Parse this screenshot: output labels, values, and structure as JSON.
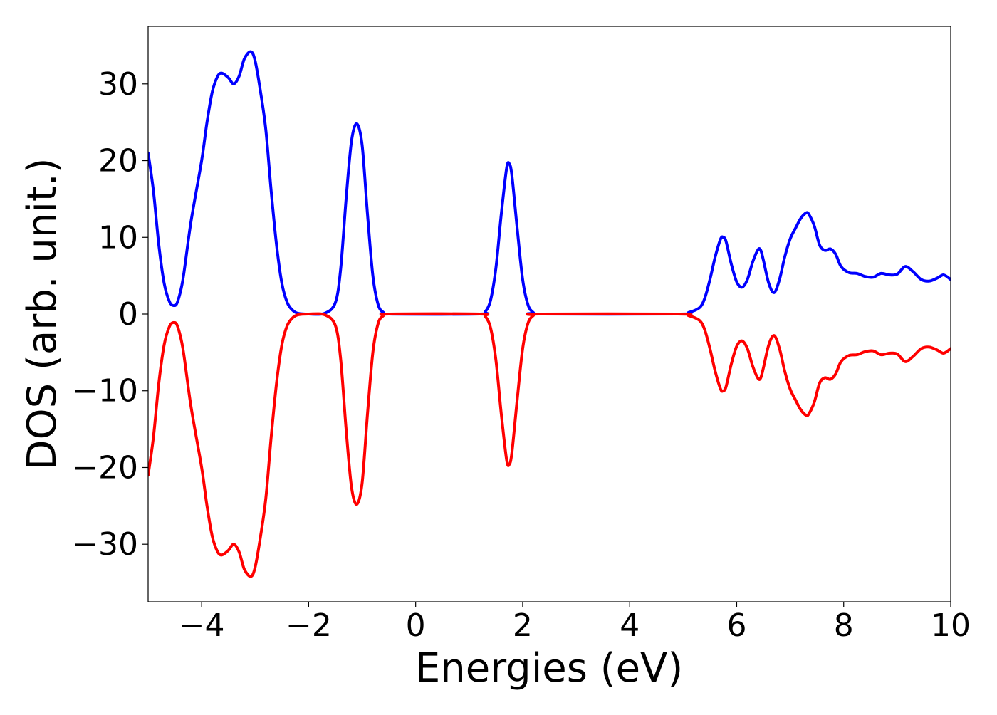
{
  "chart_data": {
    "type": "line",
    "title": "",
    "xlabel": "Energies (eV)",
    "ylabel": "DOS (arb. unit.)",
    "xlim": [
      -5,
      10
    ],
    "ylim": [
      -37.5,
      37.5
    ],
    "xticks": [
      -4,
      -2,
      0,
      2,
      4,
      6,
      8,
      10
    ],
    "xtick_labels": [
      "−4",
      "−2",
      "0",
      "2",
      "4",
      "6",
      "8",
      "10"
    ],
    "yticks": [
      -30,
      -20,
      -10,
      0,
      10,
      20,
      30
    ],
    "ytick_labels": [
      "−30",
      "−20",
      "−10",
      "0",
      "10",
      "20",
      "30"
    ],
    "grid": false,
    "legend": false,
    "series": [
      {
        "color": "#0000ff",
        "points": [
          [
            -5.0,
            21.0
          ],
          [
            -4.9,
            16.0
          ],
          [
            -4.8,
            9.0
          ],
          [
            -4.7,
            4.0
          ],
          [
            -4.6,
            1.6
          ],
          [
            -4.52,
            1.1
          ],
          [
            -4.45,
            1.6
          ],
          [
            -4.35,
            4.5
          ],
          [
            -4.2,
            12.0
          ],
          [
            -4.0,
            20.0
          ],
          [
            -3.9,
            25.0
          ],
          [
            -3.8,
            29.0
          ],
          [
            -3.7,
            31.0
          ],
          [
            -3.62,
            31.4
          ],
          [
            -3.5,
            30.8
          ],
          [
            -3.4,
            30.0
          ],
          [
            -3.3,
            31.0
          ],
          [
            -3.2,
            33.3
          ],
          [
            -3.08,
            34.2
          ],
          [
            -3.0,
            33.0
          ],
          [
            -2.9,
            29.0
          ],
          [
            -2.8,
            24.0
          ],
          [
            -2.7,
            16.0
          ],
          [
            -2.6,
            9.0
          ],
          [
            -2.5,
            4.0
          ],
          [
            -2.4,
            1.5
          ],
          [
            -2.3,
            0.5
          ],
          [
            -2.2,
            0.1
          ],
          [
            -2.0,
            0.0
          ],
          [
            -1.7,
            0.1
          ],
          [
            -1.5,
            1.5
          ],
          [
            -1.4,
            6.0
          ],
          [
            -1.3,
            15.0
          ],
          [
            -1.2,
            22.5
          ],
          [
            -1.1,
            24.8
          ],
          [
            -1.0,
            22.0
          ],
          [
            -0.9,
            13.0
          ],
          [
            -0.8,
            5.0
          ],
          [
            -0.7,
            1.2
          ],
          [
            -0.6,
            0.2
          ],
          [
            -0.5,
            0.0
          ],
          [
            1.2,
            0.0
          ],
          [
            1.3,
            0.3
          ],
          [
            1.4,
            1.8
          ],
          [
            1.5,
            6.0
          ],
          [
            1.6,
            13.0
          ],
          [
            1.7,
            19.0
          ],
          [
            1.75,
            19.6
          ],
          [
            1.8,
            18.0
          ],
          [
            1.9,
            11.0
          ],
          [
            2.0,
            4.5
          ],
          [
            2.1,
            1.2
          ],
          [
            2.2,
            0.2
          ],
          [
            2.3,
            0.0
          ],
          [
            4.9,
            0.0
          ],
          [
            5.1,
            0.2
          ],
          [
            5.3,
            0.8
          ],
          [
            5.4,
            2.0
          ],
          [
            5.5,
            4.5
          ],
          [
            5.6,
            7.5
          ],
          [
            5.7,
            9.8
          ],
          [
            5.75,
            10.0
          ],
          [
            5.8,
            9.5
          ],
          [
            5.9,
            6.5
          ],
          [
            6.0,
            4.2
          ],
          [
            6.1,
            3.5
          ],
          [
            6.2,
            4.5
          ],
          [
            6.3,
            6.8
          ],
          [
            6.4,
            8.4
          ],
          [
            6.45,
            8.3
          ],
          [
            6.5,
            7.0
          ],
          [
            6.6,
            4.0
          ],
          [
            6.7,
            2.8
          ],
          [
            6.8,
            4.5
          ],
          [
            6.9,
            7.5
          ],
          [
            7.0,
            9.8
          ],
          [
            7.1,
            11.2
          ],
          [
            7.2,
            12.5
          ],
          [
            7.3,
            13.2
          ],
          [
            7.35,
            13.0
          ],
          [
            7.45,
            11.5
          ],
          [
            7.55,
            9.0
          ],
          [
            7.65,
            8.3
          ],
          [
            7.75,
            8.5
          ],
          [
            7.85,
            7.8
          ],
          [
            7.95,
            6.2
          ],
          [
            8.1,
            5.4
          ],
          [
            8.25,
            5.3
          ],
          [
            8.4,
            4.9
          ],
          [
            8.55,
            4.8
          ],
          [
            8.7,
            5.3
          ],
          [
            8.85,
            5.1
          ],
          [
            9.0,
            5.2
          ],
          [
            9.15,
            6.2
          ],
          [
            9.3,
            5.5
          ],
          [
            9.45,
            4.5
          ],
          [
            9.6,
            4.3
          ],
          [
            9.75,
            4.7
          ],
          [
            9.87,
            5.1
          ],
          [
            10.0,
            4.5
          ]
        ]
      },
      {
        "color": "#ff0000",
        "points": [
          [
            -5.0,
            -21.0
          ],
          [
            -4.9,
            -16.0
          ],
          [
            -4.8,
            -9.0
          ],
          [
            -4.7,
            -4.0
          ],
          [
            -4.6,
            -1.6
          ],
          [
            -4.52,
            -1.1
          ],
          [
            -4.45,
            -1.6
          ],
          [
            -4.35,
            -4.5
          ],
          [
            -4.2,
            -12.0
          ],
          [
            -4.0,
            -20.0
          ],
          [
            -3.9,
            -25.0
          ],
          [
            -3.8,
            -29.0
          ],
          [
            -3.7,
            -31.0
          ],
          [
            -3.62,
            -31.4
          ],
          [
            -3.5,
            -30.8
          ],
          [
            -3.4,
            -30.0
          ],
          [
            -3.3,
            -31.0
          ],
          [
            -3.2,
            -33.3
          ],
          [
            -3.08,
            -34.2
          ],
          [
            -3.0,
            -33.0
          ],
          [
            -2.9,
            -29.0
          ],
          [
            -2.8,
            -24.0
          ],
          [
            -2.7,
            -16.0
          ],
          [
            -2.6,
            -9.0
          ],
          [
            -2.5,
            -4.0
          ],
          [
            -2.4,
            -1.5
          ],
          [
            -2.3,
            -0.5
          ],
          [
            -2.2,
            -0.1
          ],
          [
            -2.0,
            0.0
          ],
          [
            -1.7,
            -0.1
          ],
          [
            -1.5,
            -1.5
          ],
          [
            -1.4,
            -6.0
          ],
          [
            -1.3,
            -15.0
          ],
          [
            -1.2,
            -22.5
          ],
          [
            -1.1,
            -24.8
          ],
          [
            -1.0,
            -22.0
          ],
          [
            -0.9,
            -13.0
          ],
          [
            -0.8,
            -5.0
          ],
          [
            -0.7,
            -1.2
          ],
          [
            -0.6,
            -0.2
          ],
          [
            -0.5,
            0.0
          ],
          [
            1.2,
            0.0
          ],
          [
            1.3,
            -0.3
          ],
          [
            1.4,
            -1.8
          ],
          [
            1.5,
            -6.0
          ],
          [
            1.6,
            -13.0
          ],
          [
            1.7,
            -19.0
          ],
          [
            1.75,
            -19.6
          ],
          [
            1.8,
            -18.0
          ],
          [
            1.9,
            -11.0
          ],
          [
            2.0,
            -4.5
          ],
          [
            2.1,
            -1.2
          ],
          [
            2.2,
            -0.2
          ],
          [
            2.3,
            0.0
          ],
          [
            4.9,
            0.0
          ],
          [
            5.1,
            -0.2
          ],
          [
            5.3,
            -0.8
          ],
          [
            5.4,
            -2.0
          ],
          [
            5.5,
            -4.5
          ],
          [
            5.6,
            -7.5
          ],
          [
            5.7,
            -9.8
          ],
          [
            5.75,
            -10.0
          ],
          [
            5.8,
            -9.5
          ],
          [
            5.9,
            -6.5
          ],
          [
            6.0,
            -4.2
          ],
          [
            6.1,
            -3.5
          ],
          [
            6.2,
            -4.5
          ],
          [
            6.3,
            -6.8
          ],
          [
            6.4,
            -8.4
          ],
          [
            6.45,
            -8.3
          ],
          [
            6.5,
            -7.0
          ],
          [
            6.6,
            -4.0
          ],
          [
            6.7,
            -2.8
          ],
          [
            6.8,
            -4.5
          ],
          [
            6.9,
            -7.5
          ],
          [
            7.0,
            -9.8
          ],
          [
            7.1,
            -11.2
          ],
          [
            7.2,
            -12.5
          ],
          [
            7.3,
            -13.2
          ],
          [
            7.35,
            -13.0
          ],
          [
            7.45,
            -11.5
          ],
          [
            7.55,
            -9.0
          ],
          [
            7.65,
            -8.3
          ],
          [
            7.75,
            -8.5
          ],
          [
            7.85,
            -7.8
          ],
          [
            7.95,
            -6.2
          ],
          [
            8.1,
            -5.4
          ],
          [
            8.25,
            -5.3
          ],
          [
            8.4,
            -4.9
          ],
          [
            8.55,
            -4.8
          ],
          [
            8.7,
            -5.3
          ],
          [
            8.85,
            -5.1
          ],
          [
            9.0,
            -5.2
          ],
          [
            9.15,
            -6.2
          ],
          [
            9.3,
            -5.5
          ],
          [
            9.45,
            -4.5
          ],
          [
            9.6,
            -4.3
          ],
          [
            9.75,
            -4.7
          ],
          [
            9.87,
            -5.1
          ],
          [
            10.0,
            -4.5
          ]
        ]
      }
    ]
  }
}
